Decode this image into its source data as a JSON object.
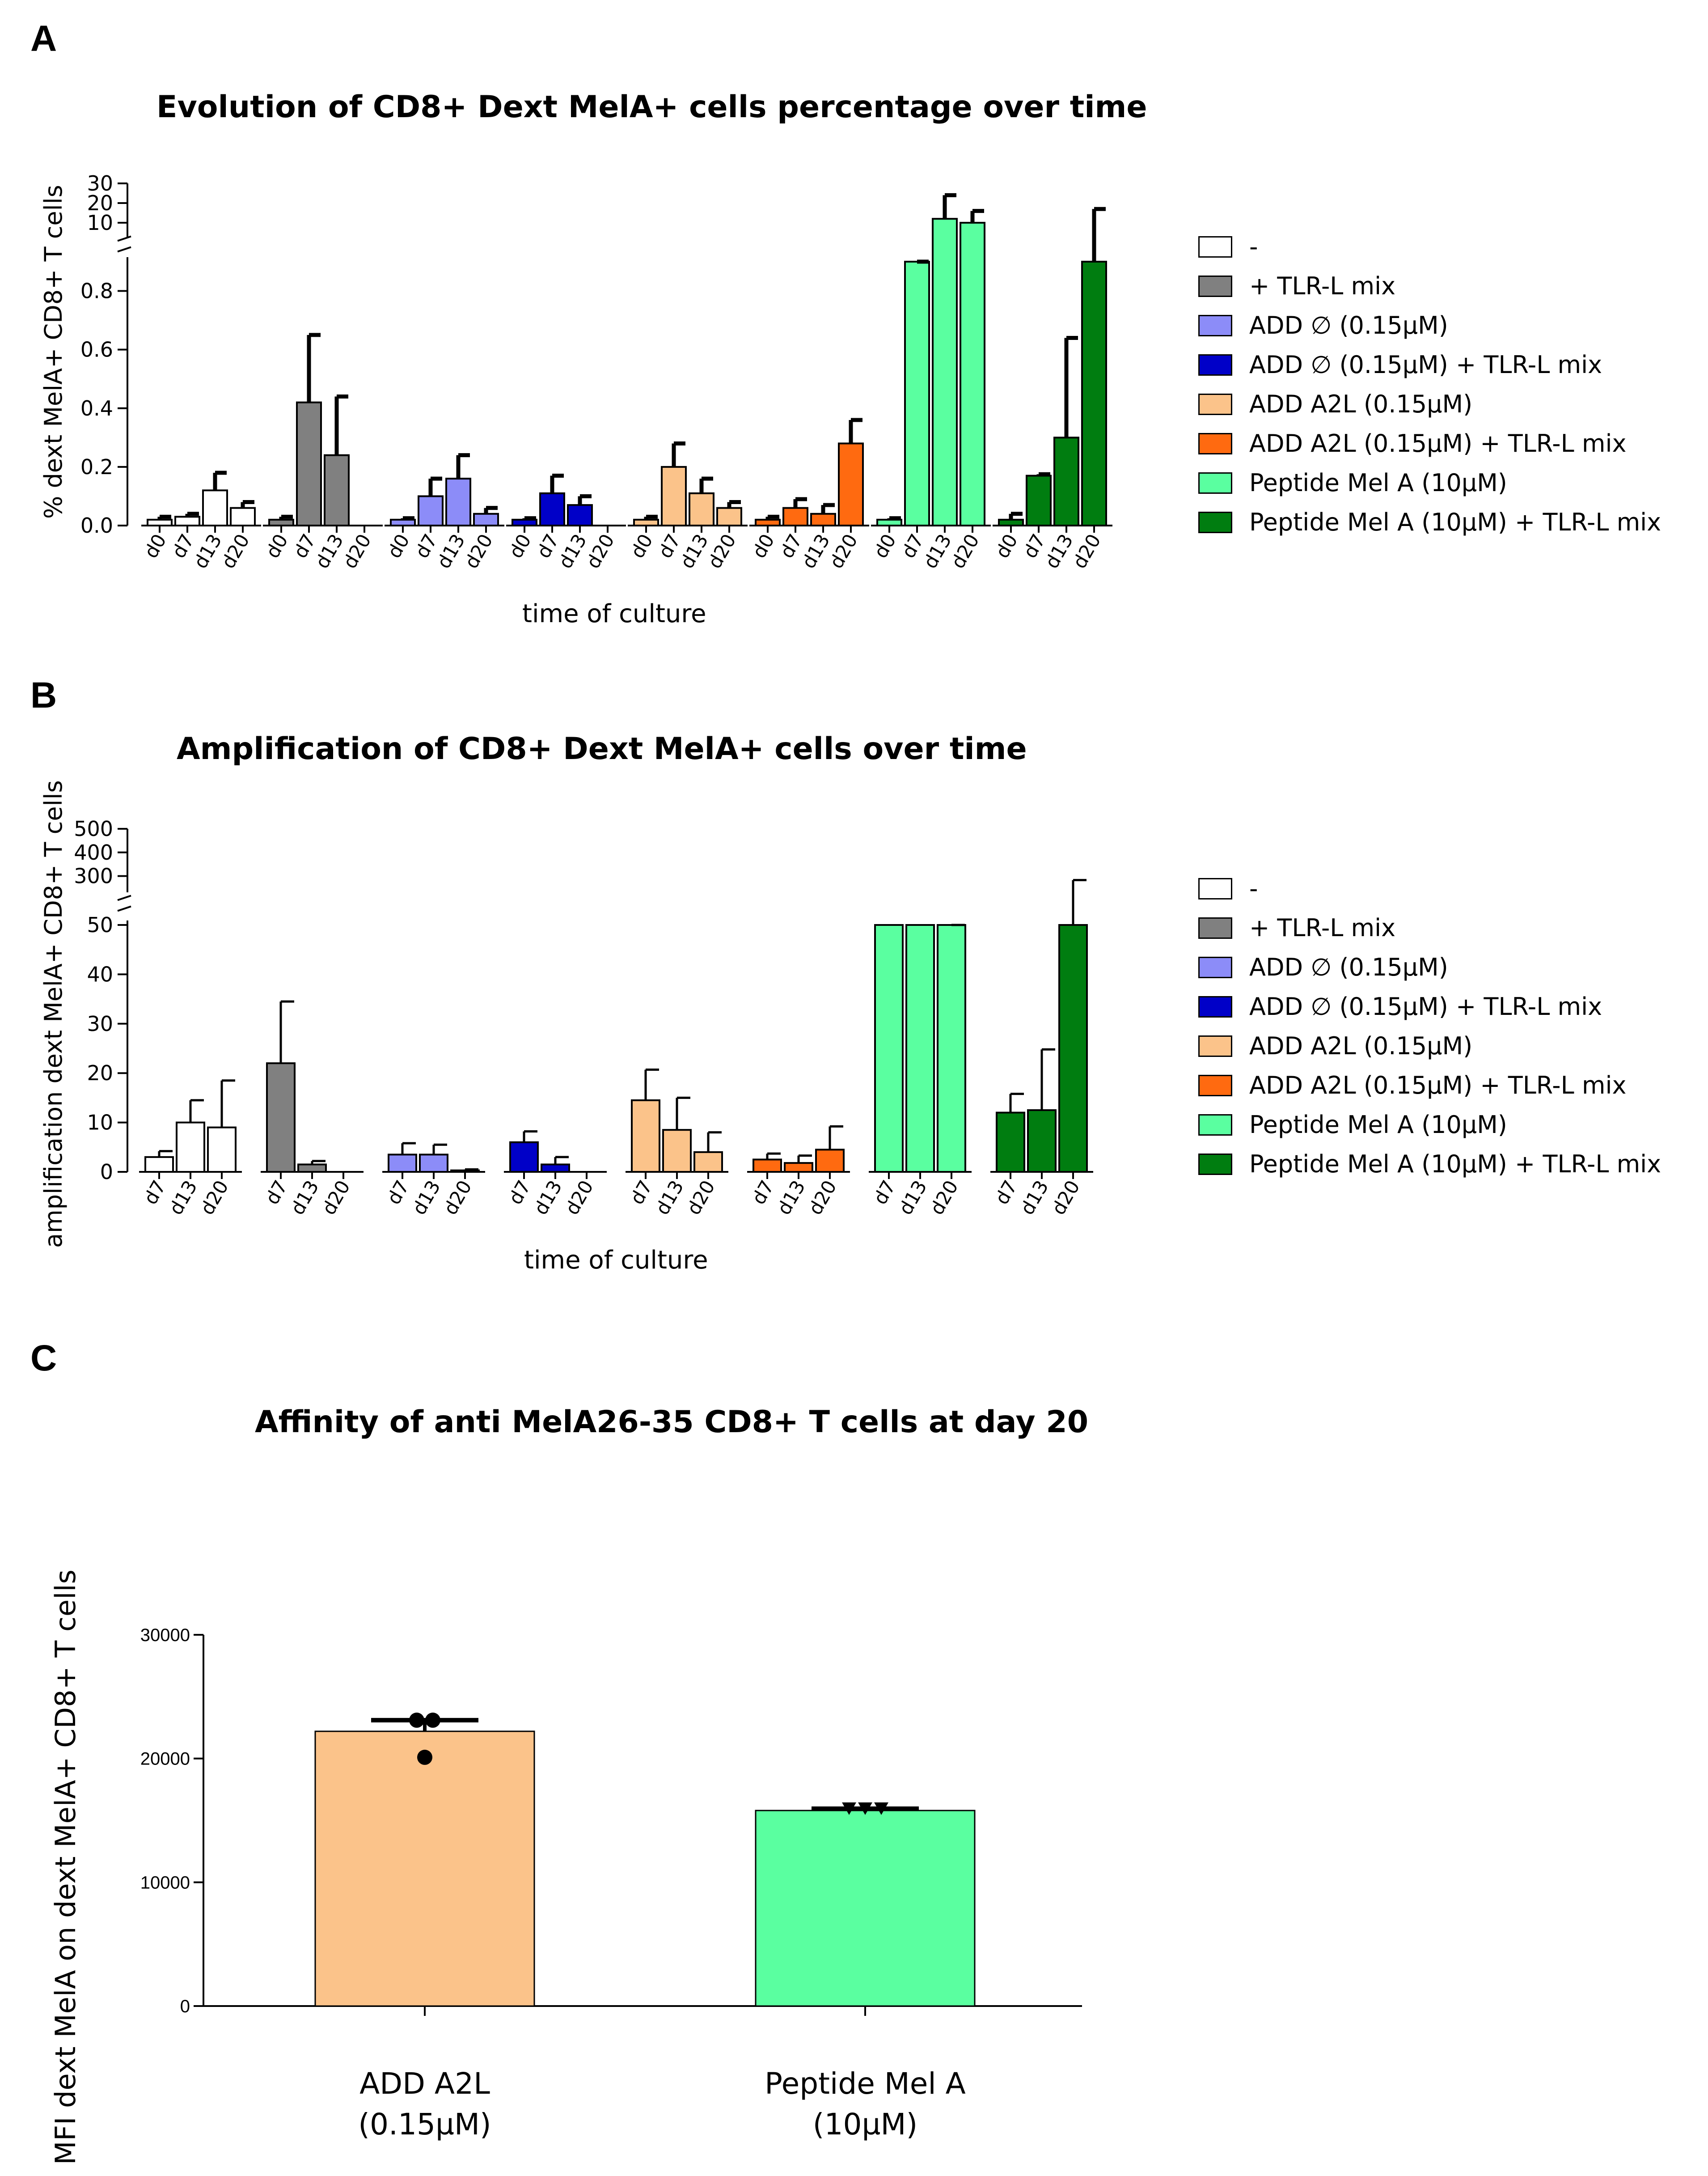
{
  "colors": {
    "none": "#ffffff",
    "tlr": "#808080",
    "add_null": "#8c8cf8",
    "add_null_tlr": "#0000c8",
    "add_a2l": "#fbc38a",
    "add_a2l_tlr": "#ff6a10",
    "pep": "#5affa0",
    "pep_tlr": "#007d10"
  },
  "legend": [
    {
      "label": "-",
      "color_key": "none"
    },
    {
      "label": "+ TLR-L mix",
      "color_key": "tlr"
    },
    {
      "label": "ADD ∅ (0.15µM)",
      "color_key": "add_null"
    },
    {
      "label": "ADD ∅ (0.15µM) + TLR-L mix",
      "color_key": "add_null_tlr"
    },
    {
      "label": "ADD A2L (0.15µM)",
      "color_key": "add_a2l"
    },
    {
      "label": "ADD A2L (0.15µM) + TLR-L mix",
      "color_key": "add_a2l_tlr"
    },
    {
      "label": "Peptide Mel A (10µM)",
      "color_key": "pep"
    },
    {
      "label": "Peptide Mel A (10µM) + TLR-L mix",
      "color_key": "pep_tlr"
    }
  ],
  "chart_data": [
    {
      "panel": "A",
      "type": "bar",
      "title": "Evolution  of CD8+ Dext MelA+ cells percentage over time",
      "xlabel": "time of culture",
      "ylabel": "% dext MelA+ CD8+ T cells",
      "y_ticks_lower": [
        "0.0",
        "0.2",
        "0.4",
        "0.6",
        "0.8"
      ],
      "y_ticks_upper": [
        "10",
        "20",
        "30"
      ],
      "ylim_lower": [
        0,
        0.9
      ],
      "ylim_upper": [
        5,
        30
      ],
      "categories": [
        "d0",
        "d7",
        "d13",
        "d20"
      ],
      "groups": [
        {
          "color_key": "none",
          "values": [
            0.02,
            0.03,
            0.12,
            0.06
          ],
          "errors": [
            0.01,
            0.01,
            0.06,
            0.02
          ]
        },
        {
          "color_key": "tlr",
          "values": [
            0.02,
            0.42,
            0.24,
            null
          ],
          "errors": [
            0.01,
            0.23,
            0.2,
            null
          ]
        },
        {
          "color_key": "add_null",
          "values": [
            0.02,
            0.1,
            0.16,
            0.04
          ],
          "errors": [
            0.005,
            0.06,
            0.08,
            0.02
          ]
        },
        {
          "color_key": "add_null_tlr",
          "values": [
            0.02,
            0.11,
            0.07,
            null
          ],
          "errors": [
            0.005,
            0.06,
            0.03,
            null
          ]
        },
        {
          "color_key": "add_a2l",
          "values": [
            0.02,
            0.2,
            0.11,
            0.06
          ],
          "errors": [
            0.01,
            0.08,
            0.05,
            0.02
          ]
        },
        {
          "color_key": "add_a2l_tlr",
          "values": [
            0.02,
            0.06,
            0.04,
            0.28
          ],
          "errors": [
            0.01,
            0.03,
            0.03,
            0.08
          ]
        },
        {
          "color_key": "pep",
          "values": [
            0.02,
            3.0,
            12.0,
            10.0
          ],
          "errors": [
            0.005,
            0.5,
            12.0,
            6.0
          ]
        },
        {
          "color_key": "pep_tlr",
          "values": [
            0.02,
            0.17,
            0.3,
            4.5
          ],
          "errors": [
            0.02,
            0.005,
            0.34,
            12.5
          ]
        }
      ]
    },
    {
      "panel": "B",
      "type": "bar",
      "title": "Amplification  of CD8+ Dext MelA+ cells over time",
      "xlabel": "time of culture",
      "ylabel": "amplification dext MelA+ CD8+ T cells",
      "y_ticks_lower": [
        "0",
        "10",
        "20",
        "30",
        "40",
        "50"
      ],
      "y_ticks_upper": [
        "300",
        "400",
        "500"
      ],
      "ylim_lower": [
        0,
        50
      ],
      "ylim_upper": [
        250,
        500
      ],
      "categories": [
        "d7",
        "d13",
        "d20"
      ],
      "groups": [
        {
          "color_key": "none",
          "values": [
            3,
            10,
            9
          ],
          "errors": [
            1.2,
            4.5,
            9.5
          ]
        },
        {
          "color_key": "tlr",
          "values": [
            22,
            1.5,
            null
          ],
          "errors": [
            12.5,
            0.7,
            null
          ]
        },
        {
          "color_key": "add_null",
          "values": [
            3.5,
            3.5,
            0.3
          ],
          "errors": [
            2.3,
            2.0,
            0.2
          ]
        },
        {
          "color_key": "add_null_tlr",
          "values": [
            6,
            1.5,
            null
          ],
          "errors": [
            2.2,
            1.5,
            null
          ]
        },
        {
          "color_key": "add_a2l",
          "values": [
            14.5,
            8.5,
            4
          ],
          "errors": [
            6.2,
            6.5,
            4
          ]
        },
        {
          "color_key": "add_a2l_tlr",
          "values": [
            2.5,
            1.8,
            4.5
          ],
          "errors": [
            1.2,
            1.5,
            4.7
          ]
        },
        {
          "color_key": "pep",
          "values": [
            53,
            53,
            53
          ],
          "errors": [
            0,
            0,
            95
          ]
        },
        {
          "color_key": "pep_tlr",
          "values": [
            12,
            12.5,
            53
          ],
          "errors": [
            3.8,
            12.3,
            230
          ]
        }
      ]
    },
    {
      "panel": "C",
      "type": "bar",
      "title": "Affinity of anti MelA26-35 CD8+ T cells at day 20",
      "ylabel": "MFI dext MelA on dext MelA+ CD8+ T cells",
      "y_ticks": [
        "0",
        "10000",
        "20000",
        "30000"
      ],
      "ylim": [
        0,
        30000
      ],
      "categories": [
        {
          "line1": "ADD A2L",
          "line2": "(0.15µM)"
        },
        {
          "line1": "Peptide Mel A",
          "line2": "(10µM)"
        }
      ],
      "bars": [
        {
          "color_key": "add_a2l",
          "value": 22200,
          "error": 900,
          "points": [
            23100,
            23100,
            20100
          ],
          "marker": "circle"
        },
        {
          "color_key": "pep",
          "value": 15800,
          "error": 150,
          "points": [
            15950,
            15950,
            15950
          ],
          "marker": "triangle-down"
        }
      ]
    }
  ],
  "panel_labels": {
    "a": "A",
    "b": "B",
    "c": "C"
  }
}
